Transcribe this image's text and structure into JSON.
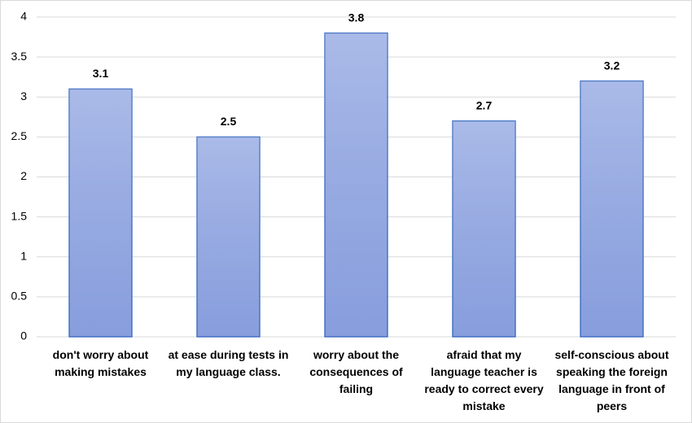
{
  "chart_data": {
    "type": "bar",
    "categories": [
      "don't worry about making mistakes",
      "at ease during tests in my language class.",
      "worry about the consequences of failing",
      "afraid that my language teacher is ready to correct every mistake",
      "self-conscious about speaking the foreign language in front of peers"
    ],
    "values": [
      3.1,
      2.5,
      3.8,
      2.7,
      3.2
    ],
    "color": "#95a9e2",
    "ylim": [
      0,
      4
    ],
    "yticks": [
      0,
      0.5,
      1,
      1.5,
      2,
      2.5,
      3,
      3.5,
      4
    ],
    "grid": true
  }
}
